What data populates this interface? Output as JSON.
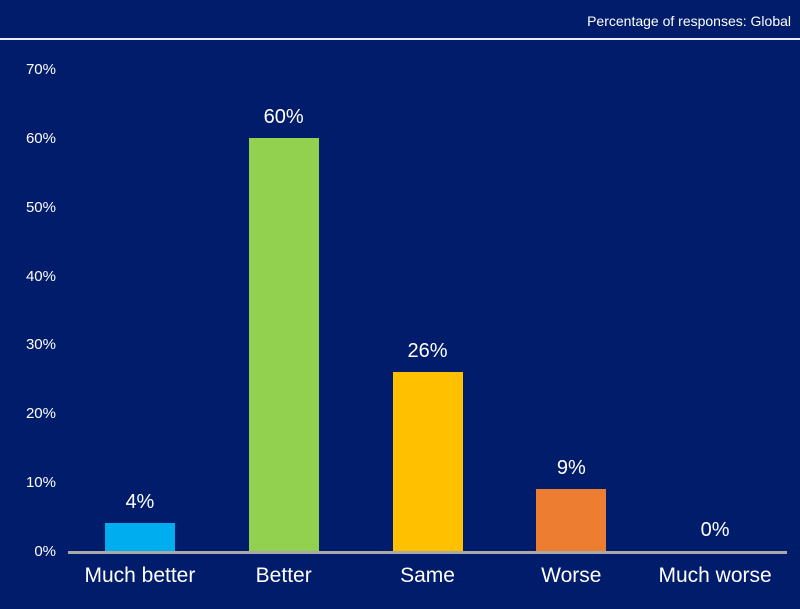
{
  "header": {
    "note": "Percentage of responses: Global"
  },
  "colors": {
    "background": "#001C6B",
    "text": "#FFFFFF",
    "axis_line": "#A9A9A9",
    "header_rule": "#EDEDF7"
  },
  "chart_data": {
    "type": "bar",
    "title": "",
    "xlabel": "",
    "ylabel": "",
    "categories": [
      "Much better",
      "Better",
      "Same",
      "Worse",
      "Much worse"
    ],
    "values": [
      4,
      60,
      26,
      9,
      0
    ],
    "data_labels": [
      "4%",
      "60%",
      "26%",
      "9%",
      "0%"
    ],
    "bar_colors": [
      "#00AEEF",
      "#92D050",
      "#FFC000",
      "#ED7D31",
      null
    ],
    "ylim": [
      0,
      70
    ],
    "ytick_step": 10,
    "ytick_labels": [
      "0%",
      "10%",
      "20%",
      "30%",
      "40%",
      "50%",
      "60%",
      "70%"
    ],
    "grid": false,
    "legend": false
  }
}
